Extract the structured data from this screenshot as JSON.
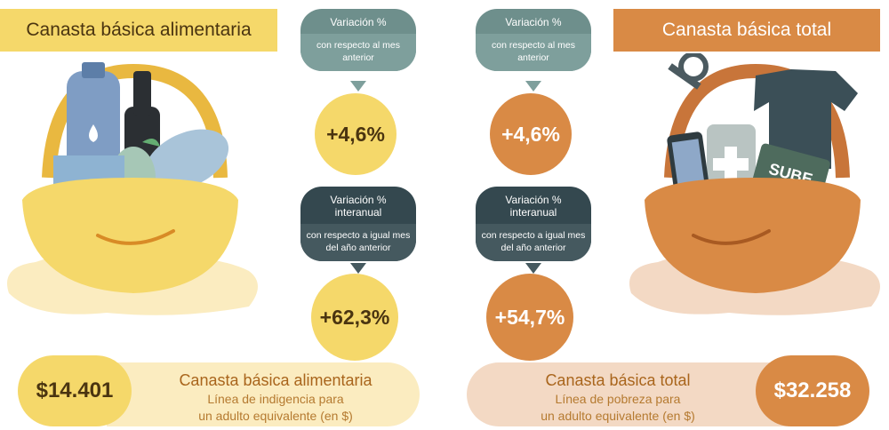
{
  "left": {
    "title": "Canasta básica alimentaria",
    "monthly": {
      "label": "Variación %",
      "sub": "con respecto al mes anterior",
      "value": "+4,6%"
    },
    "annual": {
      "label": "Variación % interanual",
      "sub": "con respecto a igual mes del año anterior",
      "value": "+62,3%"
    },
    "amount": "$14.401",
    "bottom_title": "Canasta básica alimentaria",
    "bottom_line1": "Línea de indigencia para",
    "bottom_line2": "un adulto equivalente (en $)"
  },
  "right": {
    "title": "Canasta básica total",
    "monthly": {
      "label": "Variación %",
      "sub": "con respecto al mes anterior",
      "value": "+4,6%"
    },
    "annual": {
      "label": "Variación % interanual",
      "sub": "con respecto a igual mes del año anterior",
      "value": "+54,7%"
    },
    "amount": "$32.258",
    "bottom_title": "Canasta básica total",
    "bottom_line1": "Línea de pobreza para",
    "bottom_line2": "un adulto equivalente (en $)",
    "sube_label": "SUBE"
  },
  "colors": {
    "yellow": "#f5d86a",
    "yellow_light": "#fbecc0",
    "orange": "#d98a45",
    "orange_light": "#f3d9c4",
    "teal": "#6e8f8c",
    "dark_slate": "#34484f"
  },
  "icons": [
    "water-bottle-icon",
    "wine-bottle-icon",
    "bread-icon",
    "pear-icon",
    "keys-icon",
    "tshirt-icon",
    "phone-icon",
    "medicine-icon",
    "sube-card-icon"
  ]
}
